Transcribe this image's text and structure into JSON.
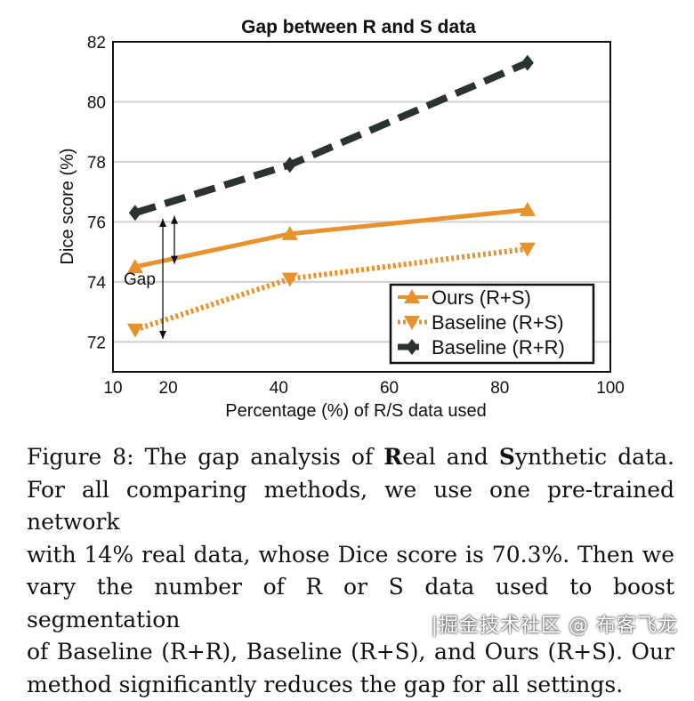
{
  "chart_data": {
    "type": "line",
    "title": "Gap between R and S data",
    "xlabel": "Percentage (%) of R/S data used",
    "ylabel": "Dice score (%)",
    "xlim": [
      10,
      100
    ],
    "ylim": [
      71,
      82
    ],
    "xticks": [
      10,
      20,
      40,
      60,
      80,
      100
    ],
    "yticks": [
      72,
      74,
      76,
      78,
      80,
      82
    ],
    "grid": "horizontal",
    "legend_position": "bottom-right",
    "series": [
      {
        "name": "Ours (R+S)",
        "x": [
          14,
          42,
          85
        ],
        "values": [
          74.5,
          75.6,
          76.4
        ],
        "color": "#E8922E",
        "style": "solid",
        "marker": "triangle-up"
      },
      {
        "name": "Baseline (R+S)",
        "x": [
          14,
          42,
          85
        ],
        "values": [
          72.4,
          74.1,
          75.1
        ],
        "color": "#E8922E",
        "style": "dotted",
        "marker": "triangle-down"
      },
      {
        "name": "Baseline (R+R)",
        "x": [
          14,
          42,
          85
        ],
        "values": [
          76.3,
          77.9,
          81.3
        ],
        "color": "#2B3330",
        "style": "dashed",
        "marker": "diamond"
      }
    ],
    "annotation": {
      "text": "Gap"
    }
  },
  "caption": {
    "label": "Figure 8:",
    "line1_rest_a": "The gap analysis of",
    "bold_r": "R",
    "line1_rest_b": "eal and",
    "bold_s": "S",
    "line1_rest_c": "ynthetic data.",
    "line2": "For all comparing methods, we use one pre-trained network",
    "line3": "with 14% real data, whose Dice score is 70.3%. Then we",
    "line4": "vary the number of R or S data used to boost segmentation",
    "line5": "of Baseline (R+R), Baseline (R+S), and Ours (R+S). Our",
    "line6": "method significantly reduces the gap for all settings."
  },
  "watermark": "|掘金技术社区 @ 布客飞龙"
}
